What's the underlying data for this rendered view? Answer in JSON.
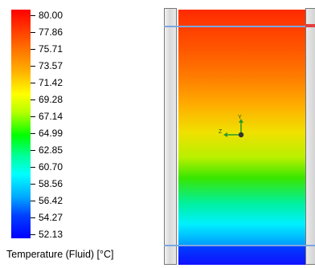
{
  "legend": {
    "title": "Temperature (Fluid) [°C]",
    "ticks": [
      "80.00",
      "77.86",
      "75.71",
      "73.57",
      "71.42",
      "69.28",
      "67.14",
      "64.99",
      "62.85",
      "60.70",
      "58.56",
      "56.42",
      "54.27",
      "52.13"
    ],
    "colors": {
      "max": "#ff0000",
      "min": "#0000ff"
    }
  },
  "viewport": {
    "axis_labels": {
      "y": "Y",
      "z": "Z"
    },
    "colors": {
      "top": "#ff2a00",
      "middle": "#f0e000",
      "bottom": "#0044ff",
      "interface": "#7aa7e0"
    }
  }
}
